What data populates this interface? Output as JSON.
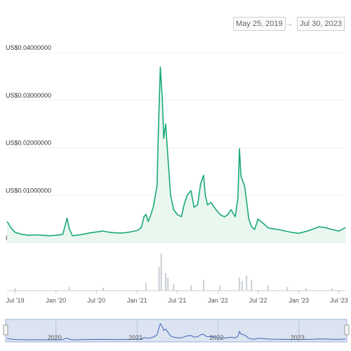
{
  "range": {
    "from": "May 25, 2019",
    "arrow": "→",
    "to": "Jul 30, 2023"
  },
  "colors": {
    "line": "#1aa97a",
    "area": "#e9f7ef",
    "volume": "#c9cdd6",
    "navigator_fill": "#dce4f2",
    "navigator_line": "#3a63b8"
  },
  "chart_data": {
    "type": "line",
    "title": "",
    "xlabel": "",
    "ylabel": "",
    "ylim": [
      0,
      0.04
    ],
    "y_ticks": [
      {
        "value": 0.04,
        "label": "US$0.04000000"
      },
      {
        "value": 0.03,
        "label": "US$0.03000000"
      },
      {
        "value": 0.02,
        "label": "US$0.02000000"
      },
      {
        "value": 0.01,
        "label": "US$0.01000000"
      },
      {
        "value": 0.0,
        "label": "US$0.00"
      }
    ],
    "x_ticks": [
      {
        "date": "2019-07-01",
        "label": "Jul '19"
      },
      {
        "date": "2020-01-01",
        "label": "Jan '20"
      },
      {
        "date": "2020-07-01",
        "label": "Jul '20"
      },
      {
        "date": "2021-01-01",
        "label": "Jan '21"
      },
      {
        "date": "2021-07-01",
        "label": "Jul '21"
      },
      {
        "date": "2022-01-01",
        "label": "Jan '22"
      },
      {
        "date": "2022-07-01",
        "label": "Jul '22"
      },
      {
        "date": "2023-01-01",
        "label": "Jan '23"
      },
      {
        "date": "2023-07-01",
        "label": "Jul '23"
      }
    ],
    "navigator_labels": [
      {
        "date": "2020-01-01",
        "label": "2020"
      },
      {
        "date": "2021-01-01",
        "label": "2021"
      },
      {
        "date": "2022-01-01",
        "label": "2022"
      },
      {
        "date": "2023-01-01",
        "label": "2023"
      }
    ],
    "x_range": [
      "2019-05-25",
      "2023-07-30"
    ],
    "series": [
      {
        "x": [
          "2019-05-25",
          "2019-06-01",
          "2019-06-15",
          "2019-07-01",
          "2019-08-01",
          "2019-09-01",
          "2019-10-01",
          "2019-11-01",
          "2019-12-01",
          "2020-01-01",
          "2020-02-01",
          "2020-02-20",
          "2020-03-01",
          "2020-03-15",
          "2020-04-01",
          "2020-05-01",
          "2020-06-01",
          "2020-07-01",
          "2020-08-01",
          "2020-09-01",
          "2020-10-01",
          "2020-11-01",
          "2020-12-01",
          "2021-01-01",
          "2021-01-20",
          "2021-02-01",
          "2021-02-10",
          "2021-02-20",
          "2021-03-01",
          "2021-03-15",
          "2021-04-01",
          "2021-04-08",
          "2021-04-16",
          "2021-04-25",
          "2021-05-01",
          "2021-05-10",
          "2021-05-20",
          "2021-06-01",
          "2021-06-15",
          "2021-07-01",
          "2021-07-20",
          "2021-08-01",
          "2021-08-15",
          "2021-09-01",
          "2021-09-15",
          "2021-10-01",
          "2021-10-15",
          "2021-10-28",
          "2021-11-05",
          "2021-11-15",
          "2021-12-01",
          "2021-12-15",
          "2022-01-01",
          "2022-01-15",
          "2022-02-01",
          "2022-02-15",
          "2022-03-01",
          "2022-03-20",
          "2022-04-01",
          "2022-04-08",
          "2022-04-15",
          "2022-05-01",
          "2022-05-12",
          "2022-05-20",
          "2022-06-01",
          "2022-06-15",
          "2022-07-01",
          "2022-08-01",
          "2022-08-15",
          "2022-09-01",
          "2022-10-01",
          "2022-11-01",
          "2022-12-01",
          "2023-01-01",
          "2023-02-01",
          "2023-03-01",
          "2023-04-01",
          "2023-05-01",
          "2023-06-01",
          "2023-07-01",
          "2023-07-30"
        ],
        "values": [
          0.0045,
          0.004,
          0.003,
          0.0022,
          0.0018,
          0.0016,
          0.0017,
          0.0016,
          0.0015,
          0.0016,
          0.0018,
          0.0052,
          0.003,
          0.0015,
          0.0016,
          0.0018,
          0.0021,
          0.0023,
          0.0025,
          0.0022,
          0.0021,
          0.0021,
          0.0023,
          0.0026,
          0.0032,
          0.0055,
          0.006,
          0.0045,
          0.0055,
          0.0075,
          0.012,
          0.025,
          0.037,
          0.03,
          0.022,
          0.025,
          0.018,
          0.01,
          0.007,
          0.006,
          0.0055,
          0.008,
          0.01,
          0.011,
          0.0075,
          0.008,
          0.0125,
          0.0142,
          0.01,
          0.008,
          0.0085,
          0.0075,
          0.0065,
          0.0058,
          0.0055,
          0.006,
          0.007,
          0.0055,
          0.0095,
          0.0198,
          0.014,
          0.012,
          0.008,
          0.005,
          0.0035,
          0.0028,
          0.005,
          0.0038,
          0.0032,
          0.003,
          0.0028,
          0.0025,
          0.0022,
          0.002,
          0.0024,
          0.0028,
          0.0034,
          0.0032,
          0.0028,
          0.0025,
          0.0032
        ]
      }
    ],
    "volume": {
      "x": [
        "2019-07-01",
        "2020-03-01",
        "2020-08-01",
        "2021-02-10",
        "2021-04-10",
        "2021-04-20",
        "2021-05-10",
        "2021-05-20",
        "2021-06-15",
        "2021-09-01",
        "2021-10-28",
        "2022-01-10",
        "2022-04-08",
        "2022-04-20",
        "2022-05-10",
        "2022-06-01",
        "2022-08-15",
        "2022-11-10",
        "2023-02-01",
        "2023-06-01"
      ],
      "values": [
        0.05,
        0.08,
        0.06,
        0.18,
        0.55,
        0.85,
        0.4,
        0.3,
        0.15,
        0.12,
        0.25,
        0.12,
        0.3,
        0.22,
        0.35,
        0.25,
        0.12,
        0.08,
        0.05,
        0.05
      ]
    }
  }
}
